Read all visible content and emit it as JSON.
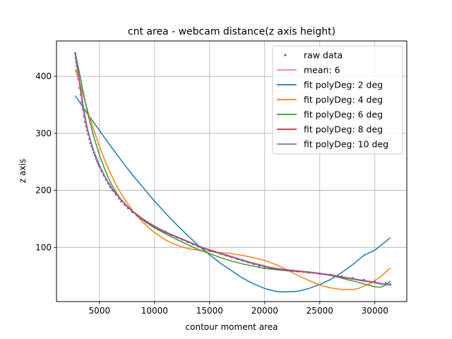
{
  "chart_data": {
    "type": "line",
    "title": "cnt area - webcam distance(z axis height)",
    "xlabel": "contour moment area",
    "ylabel": "z axis",
    "xlim": [
      1100,
      32900
    ],
    "ylim": [
      5,
      462
    ],
    "xticks": [
      5000,
      10000,
      15000,
      20000,
      25000,
      30000
    ],
    "yticks": [
      100,
      200,
      300,
      400
    ],
    "grid": true,
    "legend_position": "top-right",
    "raw_data": {
      "name": "raw data",
      "color": "#1f77b4",
      "x": [
        2800,
        2850,
        2900,
        2950,
        3000,
        3050,
        3100,
        3200,
        3300,
        3400,
        3500,
        3600,
        3700,
        3800,
        3900,
        4000,
        4100,
        4200,
        4300,
        4400,
        4500,
        4600,
        4700,
        4800,
        4900,
        5000,
        5200,
        5400,
        5600,
        5800,
        6000,
        6200,
        6500,
        6800,
        7000,
        7300,
        7600,
        8000,
        8400,
        8800,
        9200,
        9600,
        10000,
        10500,
        11000,
        11500,
        12000,
        12500,
        13000,
        13500,
        14000,
        14500,
        15000,
        15500,
        16000,
        16500,
        17000,
        17500,
        18000,
        18500,
        19000,
        19500,
        20000,
        20500,
        21000,
        21500,
        22000,
        22500,
        23000,
        24000,
        25000,
        26000,
        27000,
        28000,
        29000,
        30000,
        31000,
        31400
      ],
      "y": [
        440,
        432,
        425,
        418,
        410,
        402,
        395,
        380,
        368,
        355,
        342,
        330,
        320,
        312,
        305,
        298,
        290,
        283,
        277,
        272,
        266,
        261,
        256,
        251,
        246,
        242,
        234,
        226,
        219,
        212,
        206,
        200,
        193,
        186,
        181,
        175,
        169,
        162,
        156,
        150,
        145,
        140,
        136,
        131,
        127,
        122,
        118,
        114,
        110,
        106,
        102,
        98,
        95,
        92,
        89,
        86,
        83,
        80,
        77,
        74,
        71,
        68,
        66,
        64,
        62,
        61,
        60,
        59,
        58,
        56,
        54,
        52,
        49,
        46,
        43,
        40,
        37,
        35
      ]
    },
    "series": [
      {
        "name": "mean: 6",
        "color": "#f08080",
        "x": [
          2800,
          2900,
          3000,
          3100,
          3200,
          3400,
          3600,
          3800,
          4000,
          4300,
          4600,
          5000,
          5400,
          5800,
          6200,
          6800,
          7400,
          8000,
          8800,
          9600,
          10500,
          11500,
          12500,
          13500,
          14500,
          15500,
          16500,
          17500,
          18500,
          19500,
          20500,
          21500,
          23000,
          24500,
          26000,
          27500,
          29000,
          30500,
          31400
        ],
        "y": [
          436,
          424,
          408,
          396,
          382,
          357,
          332,
          313,
          299,
          279,
          262,
          243,
          227,
          213,
          201,
          187,
          174,
          163,
          151,
          141,
          131,
          122,
          114,
          106,
          98,
          92,
          86,
          80,
          74,
          69,
          64,
          61,
          58,
          55,
          51,
          46,
          41,
          37,
          35
        ]
      },
      {
        "name": "fit polyDeg: 2 deg",
        "color": "#1f77b4",
        "x": [
          2800,
          4000,
          5000,
          6000,
          7000,
          8000,
          9000,
          10000,
          11000,
          12000,
          13000,
          14000,
          15000,
          16000,
          17000,
          18000,
          19000,
          20000,
          21000,
          21500,
          22000,
          23000,
          24000,
          25000,
          26000,
          27000,
          28000,
          29000,
          30000,
          31400
        ],
        "y": [
          366,
          332,
          305,
          278,
          252,
          227,
          204,
          181,
          160,
          140,
          121,
          103,
          87,
          72,
          59,
          46,
          36,
          28,
          23,
          22,
          22,
          23,
          28,
          35,
          44,
          56,
          70,
          86,
          95,
          117
        ]
      },
      {
        "name": "fit polyDeg: 4 deg",
        "color": "#ff7f0e",
        "x": [
          2800,
          3200,
          3600,
          4000,
          4500,
          5000,
          5500,
          6000,
          6500,
          7000,
          7500,
          8000,
          8500,
          9000,
          9500,
          10000,
          11000,
          12000,
          13000,
          14000,
          15000,
          16000,
          17000,
          18000,
          19000,
          20000,
          21000,
          22000,
          23000,
          24000,
          25000,
          26000,
          27000,
          28000,
          28500,
          29500,
          30500,
          31400
        ],
        "y": [
          412,
          390,
          362,
          335,
          305,
          277,
          252,
          230,
          210,
          193,
          178,
          165,
          153,
          143,
          134,
          126,
          113,
          104,
          98,
          95,
          93,
          91,
          89,
          86,
          82,
          77,
          70,
          61,
          51,
          42,
          34,
          29,
          26,
          26,
          28,
          36,
          48,
          64
        ]
      },
      {
        "name": "fit polyDeg: 6 deg",
        "color": "#2ca02c",
        "x": [
          2800,
          3200,
          3600,
          4000,
          4500,
          5000,
          5500,
          6000,
          6500,
          7000,
          7500,
          8000,
          9000,
          10000,
          11000,
          12000,
          13000,
          14000,
          15000,
          16000,
          17000,
          18000,
          19000,
          20000,
          21000,
          22000,
          23000,
          24000,
          25000,
          26000,
          27000,
          28000,
          29000,
          30000,
          30500,
          31000,
          31400
        ],
        "y": [
          442,
          405,
          365,
          330,
          293,
          262,
          236,
          214,
          197,
          183,
          172,
          163,
          147,
          134,
          124,
          114,
          105,
          96,
          89,
          82,
          76,
          71,
          67,
          63,
          61,
          59,
          58,
          57,
          54,
          51,
          46,
          41,
          36,
          31,
          30,
          34,
          41
        ]
      },
      {
        "name": "fit polyDeg: 8 deg",
        "color": "#d62728",
        "x": [
          2800,
          3000,
          3200,
          3500,
          3800,
          4000,
          4300,
          4600,
          5000,
          5400,
          5800,
          6200,
          6800,
          7400,
          8000,
          8800,
          9600,
          10500,
          11500,
          12500,
          13500,
          14500,
          15500,
          16500,
          17500,
          18500,
          19500,
          20500,
          21500,
          23000,
          24500,
          26000,
          27500,
          29000,
          30000,
          30500,
          31000,
          31400
        ],
        "y": [
          440,
          415,
          390,
          350,
          318,
          300,
          279,
          262,
          243,
          227,
          213,
          201,
          187,
          174,
          163,
          151,
          141,
          131,
          122,
          114,
          106,
          98,
          92,
          86,
          80,
          74,
          69,
          64,
          61,
          58,
          55,
          51,
          46,
          41,
          38,
          36,
          35,
          34
        ]
      },
      {
        "name": "fit polyDeg: 10 deg",
        "color": "#9467bd",
        "x": [
          2800,
          3000,
          3200,
          3500,
          3800,
          4000,
          4300,
          4600,
          5000,
          5400,
          5800,
          6200,
          6800,
          7400,
          8000,
          8800,
          9600,
          10500,
          11500,
          12500,
          13500,
          14500,
          15500,
          16500,
          17500,
          18500,
          19500,
          20500,
          21500,
          23000,
          24500,
          26000,
          27500,
          29000,
          30000,
          30500,
          31000,
          31400
        ],
        "y": [
          442,
          418,
          392,
          352,
          319,
          301,
          280,
          263,
          244,
          228,
          214,
          202,
          188,
          175,
          164,
          152,
          142,
          132,
          123,
          115,
          107,
          99,
          93,
          87,
          81,
          75,
          70,
          65,
          62,
          59,
          56,
          52,
          47,
          42,
          39,
          37,
          35,
          34
        ]
      }
    ]
  }
}
